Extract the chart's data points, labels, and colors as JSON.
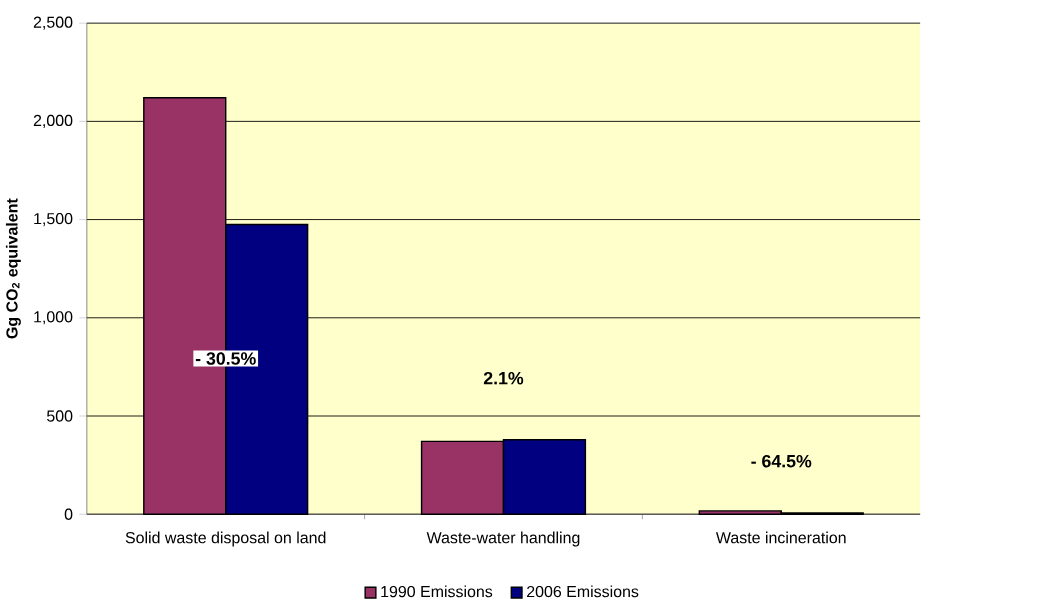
{
  "chart_data": {
    "type": "bar",
    "ylabel": "Gg CO$_{2}$ equivalent",
    "categories": [
      "Solid waste disposal on land",
      "Waste-water handling",
      "Waste incineration"
    ],
    "series": [
      {
        "name": "1990 Emissions",
        "color": "#993366",
        "values": [
          2120,
          371,
          17
        ]
      },
      {
        "name": "2006 Emissions",
        "color": "#000080",
        "values": [
          1475,
          379,
          6
        ]
      }
    ],
    "ylim": [
      0,
      2500
    ],
    "yticks": [
      0,
      500,
      {
        "value": 1000,
        "label": "1,000"
      },
      {
        "value": 1500,
        "label": "1,500"
      },
      {
        "value": 2000,
        "label": "2,000"
      },
      {
        "value": 2500,
        "label": "2,500"
      }
    ],
    "grid": "y",
    "legend": "bottom",
    "annotations": [
      "- 30.5%",
      "2.1%",
      "- 64.5%"
    ]
  }
}
